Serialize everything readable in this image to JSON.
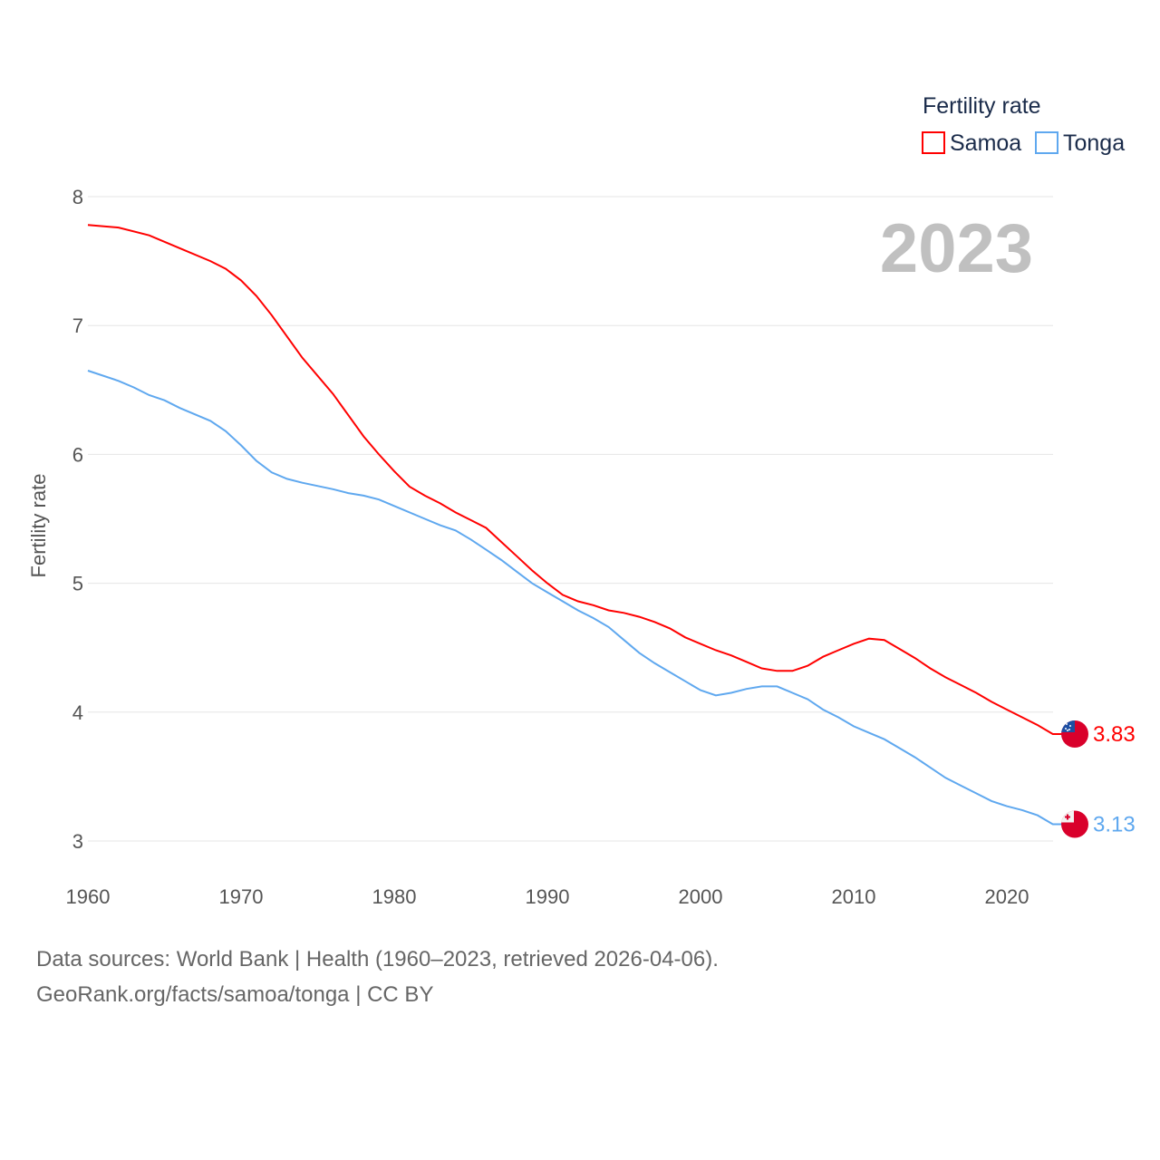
{
  "chart_data": {
    "type": "line",
    "title": "Fertility rate",
    "ylabel": "Fertility rate",
    "xlabel": "",
    "year_label": "2023",
    "xlim": [
      1960,
      2023
    ],
    "ylim": [
      3,
      8
    ],
    "xticks": [
      1960,
      1970,
      1980,
      1990,
      2000,
      2010,
      2020
    ],
    "yticks": [
      3,
      4,
      5,
      6,
      7,
      8
    ],
    "grid": true,
    "legend_position": "top-right",
    "series": [
      {
        "name": "Samoa",
        "color": "#ff0000",
        "end_label": "3.83",
        "flag": "samoa-flag",
        "points": [
          [
            1960,
            7.78
          ],
          [
            1962,
            7.76
          ],
          [
            1964,
            7.7
          ],
          [
            1966,
            7.6
          ],
          [
            1968,
            7.5
          ],
          [
            1969,
            7.44
          ],
          [
            1970,
            7.35
          ],
          [
            1971,
            7.23
          ],
          [
            1972,
            7.08
          ],
          [
            1974,
            6.75
          ],
          [
            1976,
            6.47
          ],
          [
            1978,
            6.14
          ],
          [
            1979,
            6.0
          ],
          [
            1980,
            5.87
          ],
          [
            1981,
            5.75
          ],
          [
            1982,
            5.68
          ],
          [
            1983,
            5.62
          ],
          [
            1984,
            5.55
          ],
          [
            1985,
            5.49
          ],
          [
            1986,
            5.43
          ],
          [
            1987,
            5.32
          ],
          [
            1988,
            5.21
          ],
          [
            1989,
            5.1
          ],
          [
            1990,
            5.0
          ],
          [
            1991,
            4.91
          ],
          [
            1992,
            4.86
          ],
          [
            1993,
            4.83
          ],
          [
            1994,
            4.79
          ],
          [
            1995,
            4.77
          ],
          [
            1996,
            4.74
          ],
          [
            1997,
            4.7
          ],
          [
            1998,
            4.65
          ],
          [
            1999,
            4.58
          ],
          [
            2000,
            4.53
          ],
          [
            2001,
            4.48
          ],
          [
            2002,
            4.44
          ],
          [
            2003,
            4.39
          ],
          [
            2004,
            4.34
          ],
          [
            2005,
            4.32
          ],
          [
            2006,
            4.32
          ],
          [
            2007,
            4.36
          ],
          [
            2008,
            4.43
          ],
          [
            2009,
            4.48
          ],
          [
            2010,
            4.53
          ],
          [
            2011,
            4.57
          ],
          [
            2012,
            4.56
          ],
          [
            2013,
            4.49
          ],
          [
            2014,
            4.42
          ],
          [
            2015,
            4.34
          ],
          [
            2016,
            4.27
          ],
          [
            2017,
            4.21
          ],
          [
            2018,
            4.15
          ],
          [
            2019,
            4.08
          ],
          [
            2020,
            4.02
          ],
          [
            2021,
            3.96
          ],
          [
            2022,
            3.9
          ],
          [
            2023,
            3.83
          ]
        ]
      },
      {
        "name": "Tonga",
        "color": "#5fa8ef",
        "end_label": "3.13",
        "flag": "tonga-flag",
        "points": [
          [
            1960,
            6.65
          ],
          [
            1962,
            6.57
          ],
          [
            1963,
            6.52
          ],
          [
            1964,
            6.46
          ],
          [
            1965,
            6.42
          ],
          [
            1966,
            6.36
          ],
          [
            1968,
            6.26
          ],
          [
            1969,
            6.18
          ],
          [
            1970,
            6.07
          ],
          [
            1971,
            5.95
          ],
          [
            1972,
            5.86
          ],
          [
            1973,
            5.81
          ],
          [
            1974,
            5.78
          ],
          [
            1976,
            5.73
          ],
          [
            1977,
            5.7
          ],
          [
            1978,
            5.68
          ],
          [
            1979,
            5.65
          ],
          [
            1980,
            5.6
          ],
          [
            1982,
            5.5
          ],
          [
            1983,
            5.45
          ],
          [
            1984,
            5.41
          ],
          [
            1985,
            5.34
          ],
          [
            1986,
            5.26
          ],
          [
            1987,
            5.18
          ],
          [
            1988,
            5.09
          ],
          [
            1989,
            5.0
          ],
          [
            1990,
            4.93
          ],
          [
            1991,
            4.86
          ],
          [
            1992,
            4.79
          ],
          [
            1993,
            4.73
          ],
          [
            1994,
            4.66
          ],
          [
            1995,
            4.56
          ],
          [
            1996,
            4.46
          ],
          [
            1997,
            4.38
          ],
          [
            1998,
            4.31
          ],
          [
            1999,
            4.24
          ],
          [
            2000,
            4.17
          ],
          [
            2001,
            4.13
          ],
          [
            2002,
            4.15
          ],
          [
            2003,
            4.18
          ],
          [
            2004,
            4.2
          ],
          [
            2005,
            4.2
          ],
          [
            2006,
            4.15
          ],
          [
            2007,
            4.1
          ],
          [
            2008,
            4.02
          ],
          [
            2009,
            3.96
          ],
          [
            2010,
            3.89
          ],
          [
            2011,
            3.84
          ],
          [
            2012,
            3.79
          ],
          [
            2013,
            3.72
          ],
          [
            2014,
            3.65
          ],
          [
            2015,
            3.57
          ],
          [
            2016,
            3.49
          ],
          [
            2017,
            3.43
          ],
          [
            2018,
            3.37
          ],
          [
            2019,
            3.31
          ],
          [
            2020,
            3.27
          ],
          [
            2021,
            3.24
          ],
          [
            2022,
            3.2
          ],
          [
            2023,
            3.13
          ]
        ]
      }
    ]
  },
  "footer": {
    "line1": "Data sources: World Bank | Health (1960–2023, retrieved 2026-04-06).",
    "line2": "GeoRank.org/facts/samoa/tonga | CC BY"
  }
}
